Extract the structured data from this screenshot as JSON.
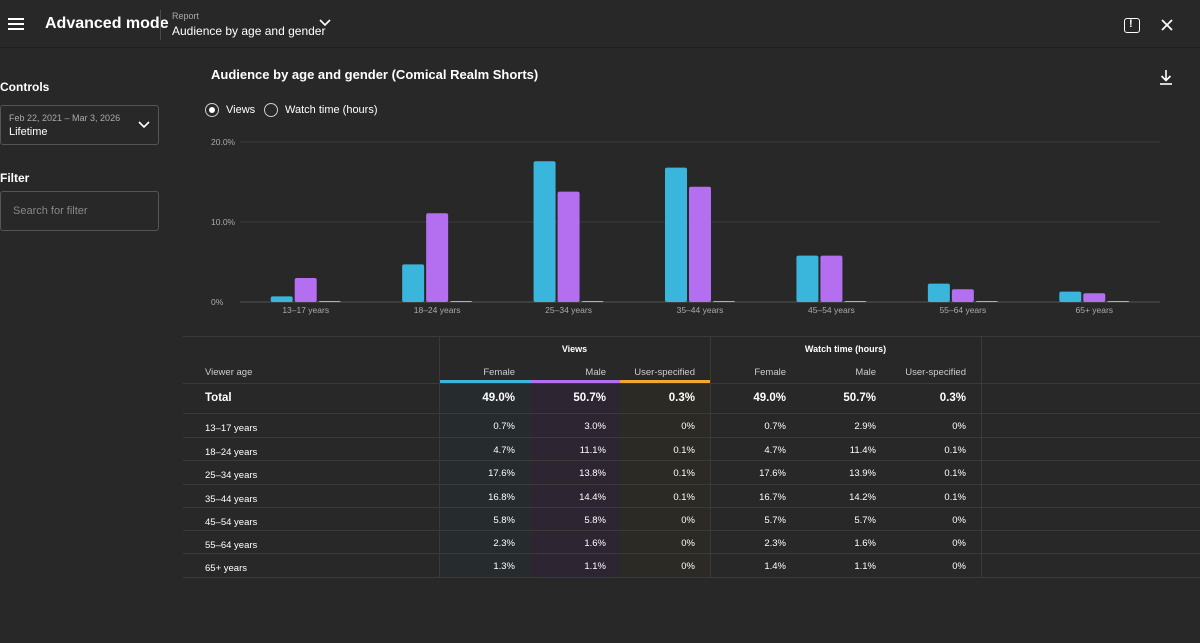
{
  "header": {
    "app_title": "Advanced mode",
    "report_label": "Report",
    "report_name": "Audience by age and gender"
  },
  "sidebar": {
    "controls_label": "Controls",
    "date_range": "Feb 22, 2021 – Mar 3, 2026",
    "date_preset": "Lifetime",
    "filter_label": "Filter",
    "filter_placeholder": "Search for filter"
  },
  "chart_section": {
    "title": "Audience by age and gender (Comical Realm Shorts)",
    "metric_options": [
      "Views",
      "Watch time (hours)"
    ],
    "selected_metric": "Views"
  },
  "colors": {
    "female": "#3ab5dc",
    "male": "#b46ef0",
    "user_specified": "#f0a830",
    "background": "#282828"
  },
  "chart_data": {
    "type": "bar",
    "categories": [
      "13–17 years",
      "18–24 years",
      "25–34 years",
      "35–44 years",
      "45–54 years",
      "55–64 years",
      "65+ years"
    ],
    "series": [
      {
        "name": "Female",
        "values": [
          0.7,
          4.7,
          17.6,
          16.8,
          5.8,
          2.3,
          1.3
        ]
      },
      {
        "name": "Male",
        "values": [
          3.0,
          11.1,
          13.8,
          14.4,
          5.8,
          1.6,
          1.1
        ]
      },
      {
        "name": "User-specified",
        "values": [
          0,
          0.1,
          0.1,
          0.1,
          0,
          0,
          0
        ]
      }
    ],
    "ylim": [
      0,
      20
    ],
    "yticks": [
      "0%",
      "10.0%",
      "20.0%"
    ],
    "ytick_values": [
      0,
      10,
      20
    ]
  },
  "table": {
    "row_header": "Viewer age",
    "groups": [
      "Views",
      "Watch time (hours)"
    ],
    "columns": [
      "Female",
      "Male",
      "User-specified",
      "Female",
      "Male",
      "User-specified"
    ],
    "total": {
      "label": "Total",
      "values": [
        "49.0%",
        "50.7%",
        "0.3%",
        "49.0%",
        "50.7%",
        "0.3%"
      ]
    },
    "rows": [
      {
        "label": "13–17 years",
        "values": [
          "0.7%",
          "3.0%",
          "0%",
          "0.7%",
          "2.9%",
          "0%"
        ]
      },
      {
        "label": "18–24 years",
        "values": [
          "4.7%",
          "11.1%",
          "0.1%",
          "4.7%",
          "11.4%",
          "0.1%"
        ]
      },
      {
        "label": "25–34 years",
        "values": [
          "17.6%",
          "13.8%",
          "0.1%",
          "17.6%",
          "13.9%",
          "0.1%"
        ]
      },
      {
        "label": "35–44 years",
        "values": [
          "16.8%",
          "14.4%",
          "0.1%",
          "16.7%",
          "14.2%",
          "0.1%"
        ]
      },
      {
        "label": "45–54 years",
        "values": [
          "5.8%",
          "5.8%",
          "0%",
          "5.7%",
          "5.7%",
          "0%"
        ]
      },
      {
        "label": "55–64 years",
        "values": [
          "2.3%",
          "1.6%",
          "0%",
          "2.3%",
          "1.6%",
          "0%"
        ]
      },
      {
        "label": "65+ years",
        "values": [
          "1.3%",
          "1.1%",
          "0%",
          "1.4%",
          "1.1%",
          "0%"
        ]
      }
    ]
  }
}
